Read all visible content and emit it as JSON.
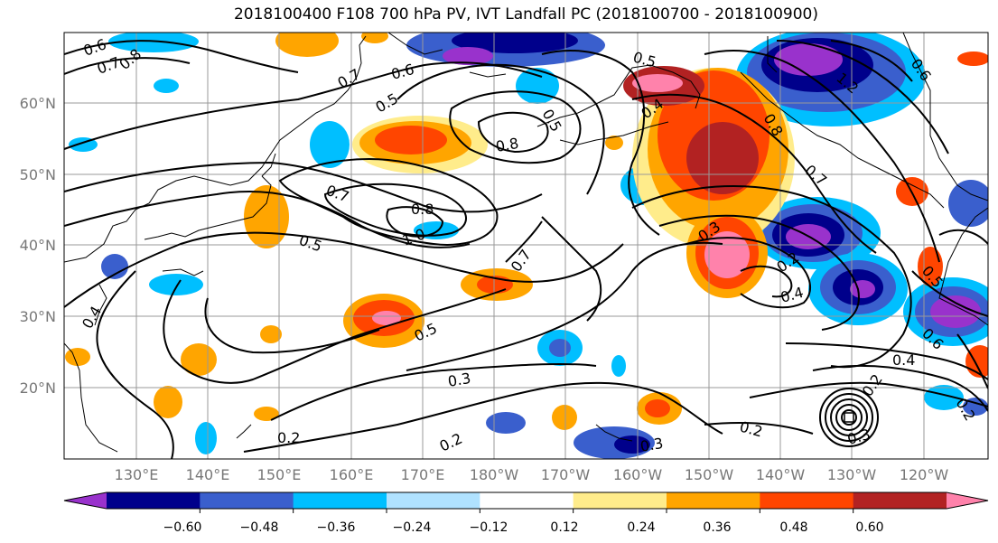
{
  "title": "2018100400 F108 700 hPa PV, IVT Landfall PC (2018100700 - 2018100900)",
  "lat_labels": [
    "60°N",
    "50°N",
    "40°N",
    "30°N",
    "20°N"
  ],
  "lon_labels": [
    "130°E",
    "140°E",
    "150°E",
    "160°E",
    "170°E",
    "180°W",
    "170°W",
    "160°W",
    "150°W",
    "140°W",
    "130°W",
    "120°W"
  ],
  "colorbar": {
    "ticks": [
      "−0.60",
      "−0.48",
      "−0.36",
      "−0.24",
      "−0.12",
      "0.12",
      "0.24",
      "0.36",
      "0.48",
      "0.60"
    ],
    "colors": [
      "#9932CC",
      "#00008B",
      "#3A5FCD",
      "#00BFFF",
      "#B0E2FF",
      "#FFFFFF",
      "#FFEC8B",
      "#FFA500",
      "#FF4500",
      "#B22222",
      "#FF82AB"
    ]
  },
  "contour_labels": [
    "0.6",
    "0.7",
    "0.8",
    "0.7",
    "0.6",
    "0.5",
    "0.5",
    "0.5",
    "0.8",
    "0.7",
    "0.8",
    "1.0",
    "0.5",
    "0.7",
    "0.5",
    "0.3",
    "0.2",
    "0.2",
    "0.2",
    "0.3",
    "0.2",
    "0.3",
    "0.2",
    "0.4",
    "0.4",
    "0.4",
    "0.8",
    "0.7",
    "1.2",
    "0.5",
    "0.4",
    "0.6",
    "0.2",
    "0.6",
    "0.3"
  ]
}
